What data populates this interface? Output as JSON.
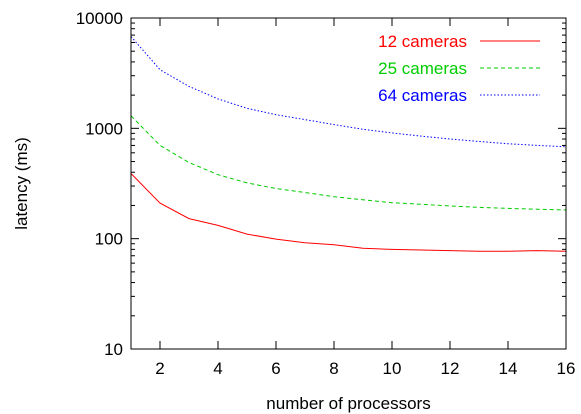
{
  "chart_data": {
    "type": "line",
    "title": "",
    "xlabel": "number of processors",
    "ylabel": "latency (ms)",
    "x_scale": "linear",
    "y_scale": "log",
    "xlim": [
      1,
      16
    ],
    "ylim": [
      10,
      10000
    ],
    "x_ticks": [
      2,
      4,
      6,
      8,
      10,
      12,
      14,
      16
    ],
    "x_tick_labels": [
      "2",
      "4",
      "6",
      "8",
      "10",
      "12",
      "14",
      "16"
    ],
    "y_ticks": [
      10,
      100,
      1000,
      10000
    ],
    "y_tick_labels": [
      "10",
      "100",
      "1000",
      "10000"
    ],
    "grid": false,
    "legend_position": "top-right",
    "x": [
      1,
      2,
      3,
      4,
      5,
      6,
      7,
      8,
      9,
      10,
      11,
      12,
      13,
      14,
      15,
      16
    ],
    "series": [
      {
        "name": "12 cameras",
        "color": "#ff0000",
        "dash": "solid",
        "values": [
          390,
          210,
          152,
          132,
          110,
          99,
          92,
          88,
          82,
          80,
          79,
          78,
          77,
          77,
          78,
          77
        ]
      },
      {
        "name": "25 cameras",
        "color": "#00cc00",
        "dash": "dashed",
        "values": [
          1300,
          700,
          490,
          380,
          320,
          285,
          262,
          240,
          225,
          212,
          205,
          198,
          192,
          188,
          185,
          182
        ]
      },
      {
        "name": "64 cameras",
        "color": "#0000ff",
        "dash": "dotted",
        "values": [
          6800,
          3400,
          2400,
          1850,
          1520,
          1330,
          1200,
          1080,
          980,
          910,
          850,
          800,
          760,
          725,
          700,
          680
        ]
      }
    ]
  }
}
